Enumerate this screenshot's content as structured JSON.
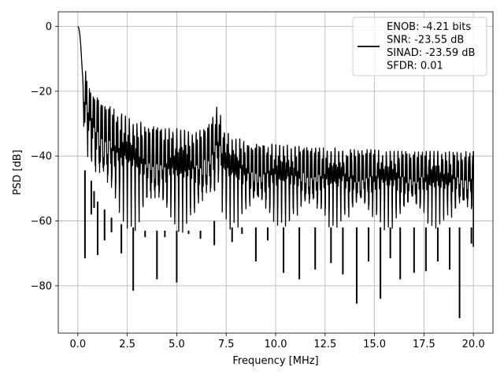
{
  "chart_data": {
    "type": "line",
    "xlabel": "Frequency [MHz]",
    "ylabel": "PSD [dB]",
    "xlim": [
      -0.99,
      20.99
    ],
    "ylim": [
      -94.6,
      4.5
    ],
    "xticks": [
      0.0,
      2.5,
      5.0,
      7.5,
      10.0,
      12.5,
      15.0,
      17.5,
      20.0
    ],
    "xtick_labels": [
      "0.0",
      "2.5",
      "5.0",
      "7.5",
      "10.0",
      "12.5",
      "15.0",
      "17.5",
      "20.0"
    ],
    "yticks": [
      0,
      -20,
      -40,
      -60,
      -80
    ],
    "ytick_labels": [
      "0",
      "−20",
      "−40",
      "−60",
      "−80"
    ],
    "grid": true,
    "legend_position": "top-right",
    "series_color": "#000000",
    "legend_entries": [
      "ENOB: -4.21 bits",
      "SNR: -23.55 dB",
      "SINAD: -23.59 dB",
      "SFDR: 0.01"
    ],
    "series": [
      {
        "name": "ENOB: -4.21 bits\nSNR: -23.55 dB\nSINAD: -23.59 dB\nSFDR: 0.01",
        "x": [
          0.0,
          0.05,
          0.1,
          0.15,
          0.2,
          0.25,
          0.3,
          0.35,
          0.4,
          0.45,
          0.5,
          0.55,
          0.6,
          0.65,
          0.7,
          0.75,
          0.8,
          0.85,
          0.9,
          1.0,
          1.1,
          1.2,
          1.3,
          1.4,
          1.5,
          1.6,
          1.7,
          1.8,
          1.9,
          2.0,
          2.1,
          2.2,
          2.3,
          2.4,
          2.5,
          2.6,
          2.7,
          2.8,
          2.9,
          3.0,
          3.2,
          3.4,
          3.6,
          3.8,
          4.0,
          4.2,
          4.4,
          4.6,
          4.8,
          5.0,
          5.2,
          5.4,
          5.6,
          5.8,
          6.0,
          6.2,
          6.4,
          6.6,
          6.8,
          6.9,
          7.0,
          7.05,
          7.1,
          7.15,
          7.2,
          7.3,
          7.4,
          7.6,
          7.8,
          8.0,
          8.5,
          9.0,
          9.5,
          10.0,
          10.5,
          11.0,
          11.5,
          12.0,
          12.5,
          13.0,
          13.5,
          14.0,
          14.5,
          15.0,
          15.5,
          16.0,
          16.5,
          17.0,
          17.5,
          18.0,
          18.5,
          19.0,
          19.5,
          20.0
        ],
        "upper": [
          0.0,
          -0.5,
          -2.5,
          -6.0,
          -11.5,
          -16.0,
          -19.0,
          -15.5,
          -13.5,
          -14.5,
          -17.0,
          -19.5,
          -19.0,
          -17.5,
          -18.0,
          -19.5,
          -20.5,
          -20.5,
          -20.0,
          -21.0,
          -22.5,
          -22.0,
          -23.5,
          -23.0,
          -24.5,
          -24.0,
          -25.0,
          -25.5,
          -25.5,
          -26.0,
          -26.5,
          -27.0,
          -27.0,
          -27.5,
          -28.0,
          -28.0,
          -28.5,
          -29.0,
          -29.0,
          -29.5,
          -29.5,
          -30.0,
          -30.0,
          -30.5,
          -30.5,
          -31.0,
          -31.0,
          -31.5,
          -31.5,
          -31.5,
          -32.0,
          -32.0,
          -32.5,
          -32.5,
          -32.5,
          -32.0,
          -31.5,
          -30.5,
          -28.0,
          -27.0,
          -25.0,
          -24.5,
          -24.0,
          -25.5,
          -27.0,
          -29.5,
          -31.5,
          -33.0,
          -34.0,
          -34.5,
          -35.0,
          -35.5,
          -36.0,
          -36.5,
          -36.5,
          -37.0,
          -37.0,
          -37.5,
          -37.5,
          -37.5,
          -38.0,
          -38.0,
          -38.0,
          -38.0,
          -38.5,
          -38.5,
          -38.5,
          -38.5,
          -38.5,
          -38.5,
          -38.5,
          -38.5,
          -38.5,
          -38.5
        ],
        "lower": [
          0.0,
          -0.5,
          -2.5,
          -6.0,
          -11.5,
          -22.0,
          -30.0,
          -45.0,
          -42.0,
          -40.0,
          -42.0,
          -45.0,
          -45.0,
          -47.0,
          -48.0,
          -50.0,
          -50.0,
          -52.0,
          -53.0,
          -54.0,
          -55.0,
          -56.0,
          -56.0,
          -57.0,
          -58.0,
          -58.0,
          -59.0,
          -59.0,
          -60.0,
          -60.0,
          -60.0,
          -61.0,
          -61.0,
          -61.0,
          -62.0,
          -62.0,
          -62.0,
          -62.0,
          -63.0,
          -63.0,
          -63.0,
          -63.0,
          -63.0,
          -63.0,
          -63.0,
          -63.0,
          -63.0,
          -63.0,
          -63.0,
          -63.0,
          -63.0,
          -63.0,
          -63.0,
          -63.0,
          -63.0,
          -63.0,
          -62.0,
          -61.0,
          -60.0,
          -60.0,
          -58.0,
          -55.0,
          -54.0,
          -56.0,
          -58.0,
          -60.0,
          -61.0,
          -62.0,
          -62.0,
          -62.0,
          -62.0,
          -62.0,
          -62.0,
          -62.0,
          -62.0,
          -62.0,
          -62.0,
          -62.0,
          -62.0,
          -62.0,
          -62.0,
          -62.0,
          -62.0,
          -62.0,
          -62.0,
          -62.0,
          -62.0,
          -62.0,
          -62.0,
          -62.0,
          -62.0,
          -62.0,
          -62.0,
          -62.0
        ]
      }
    ],
    "deep_nulls": [
      {
        "x": 0.36,
        "y": -71.5
      },
      {
        "x": 0.68,
        "y": -58.0
      },
      {
        "x": 0.82,
        "y": -56.0
      },
      {
        "x": 1.0,
        "y": -70.5
      },
      {
        "x": 1.35,
        "y": -66.0
      },
      {
        "x": 1.7,
        "y": -63.5
      },
      {
        "x": 2.2,
        "y": -70.0
      },
      {
        "x": 2.8,
        "y": -81.5
      },
      {
        "x": 3.4,
        "y": -65.0
      },
      {
        "x": 4.0,
        "y": -78.0
      },
      {
        "x": 4.4,
        "y": -65.0
      },
      {
        "x": 5.0,
        "y": -79.0
      },
      {
        "x": 5.6,
        "y": -64.0
      },
      {
        "x": 6.2,
        "y": -65.5
      },
      {
        "x": 6.9,
        "y": -67.5
      },
      {
        "x": 7.8,
        "y": -66.5
      },
      {
        "x": 8.3,
        "y": -64.0
      },
      {
        "x": 9.0,
        "y": -72.5
      },
      {
        "x": 9.6,
        "y": -66.0
      },
      {
        "x": 10.4,
        "y": -76.0
      },
      {
        "x": 11.2,
        "y": -78.0
      },
      {
        "x": 12.0,
        "y": -75.0
      },
      {
        "x": 12.8,
        "y": -73.0
      },
      {
        "x": 13.4,
        "y": -76.5
      },
      {
        "x": 14.1,
        "y": -85.5
      },
      {
        "x": 14.7,
        "y": -72.5
      },
      {
        "x": 15.3,
        "y": -84.0
      },
      {
        "x": 15.8,
        "y": -71.5
      },
      {
        "x": 16.3,
        "y": -78.0
      },
      {
        "x": 17.0,
        "y": -76.0
      },
      {
        "x": 17.6,
        "y": -75.5
      },
      {
        "x": 18.2,
        "y": -72.5
      },
      {
        "x": 18.8,
        "y": -75.0
      },
      {
        "x": 19.3,
        "y": -90.0
      },
      {
        "x": 19.9,
        "y": -67.0
      }
    ]
  }
}
